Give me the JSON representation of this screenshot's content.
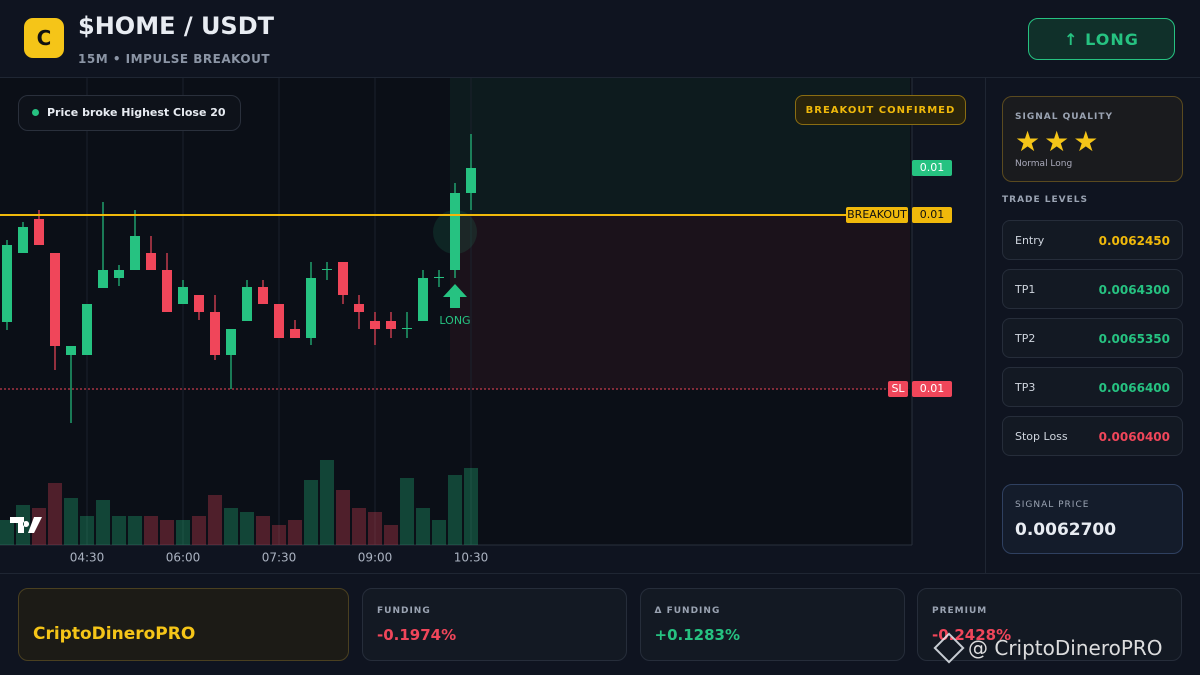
{
  "header": {
    "logo": "C",
    "title": "$HOME / USDT",
    "subtitle": "15M • IMPULSE BREAKOUT",
    "button": "↑ LONG"
  },
  "chart_data": {
    "type": "candlestick",
    "badge": "Price broke Highest Close 20",
    "status": "BREAKOUT CONFIRMED",
    "signal_label": "LONG",
    "open": [
      0.006107,
      0.006176,
      0.00621,
      0.006176,
      0.006074,
      0.006074,
      0.006141,
      0.006151,
      0.006159,
      0.006176,
      0.006159,
      0.006125,
      0.006134,
      0.006117,
      0.006074,
      0.006108,
      0.006142,
      0.006125,
      0.0061,
      0.006091,
      0.006159,
      0.006167,
      0.006125,
      0.006108,
      0.006108,
      0.0061,
      0.006108,
      0.006151,
      0.006159,
      0.006236
    ],
    "high": [
      0.006189,
      0.006207,
      0.006219,
      0.006176,
      0.006083,
      0.006125,
      0.006227,
      0.006164,
      0.006219,
      0.006193,
      0.006176,
      0.006149,
      0.006134,
      0.006134,
      0.0061,
      0.006149,
      0.006149,
      0.006125,
      0.006109,
      0.006167,
      0.006167,
      0.006167,
      0.006134,
      0.006117,
      0.006117,
      0.006117,
      0.006159,
      0.006159,
      0.006246,
      0.006295
    ],
    "low": [
      0.006099,
      0.006176,
      0.006184,
      0.006059,
      0.006006,
      0.006074,
      0.006141,
      0.006143,
      0.006159,
      0.006159,
      0.006117,
      0.006125,
      0.006109,
      0.006069,
      0.00604,
      0.006108,
      0.006125,
      0.006091,
      0.006091,
      0.006084,
      0.006149,
      0.006125,
      0.0061,
      0.006084,
      0.006091,
      0.006091,
      0.006108,
      0.006142,
      0.006151,
      0.006219
    ],
    "close": [
      0.006184,
      0.006202,
      0.006184,
      0.006083,
      0.006083,
      0.006125,
      0.006159,
      0.006159,
      0.006193,
      0.006159,
      0.006117,
      0.006142,
      0.006117,
      0.006074,
      0.0061,
      0.006142,
      0.006125,
      0.006091,
      0.006091,
      0.006151,
      0.00616,
      0.006134,
      0.006117,
      0.0061,
      0.0061,
      0.006101,
      0.006151,
      0.006152,
      0.006236,
      0.006261
    ],
    "volume": [
      25,
      40,
      37,
      62,
      47,
      29,
      45,
      29,
      29,
      29,
      25,
      25,
      29,
      50,
      37,
      33,
      29,
      20,
      25,
      65,
      85,
      55,
      37,
      33,
      20,
      67,
      37,
      25,
      70,
      77
    ],
    "ylim": [
      0.005969,
      0.006351
    ],
    "vlim": [
      0,
      100
    ],
    "xticks": [
      {
        "value": 5,
        "label": "04:30"
      },
      {
        "value": 11,
        "label": "06:00"
      },
      {
        "value": 17,
        "label": "07:30"
      },
      {
        "value": 23,
        "label": "09:00"
      },
      {
        "value": 29,
        "label": "10:30"
      }
    ],
    "levels": [
      {
        "name": "BREAKOUT",
        "value": 0.006214,
        "label": "0.01",
        "color": "#f0b90b"
      },
      {
        "name": "SL",
        "value": 0.00604,
        "label": "0.01",
        "color": "#f0465a"
      }
    ],
    "last_label": "0.01",
    "colors": {
      "up": "#26c281",
      "down": "#f0465a"
    }
  },
  "sidebar": {
    "quality_title": "SIGNAL QUALITY",
    "stars": 3,
    "quality_label": "Normal Long",
    "levels_title": "TRADE LEVELS",
    "levels": [
      {
        "name": "Entry",
        "value": "0.0062450",
        "color": "#f0b90b"
      },
      {
        "name": "TP1",
        "value": "0.0064300",
        "color": "#26c281"
      },
      {
        "name": "TP2",
        "value": "0.0065350",
        "color": "#26c281"
      },
      {
        "name": "TP3",
        "value": "0.0066400",
        "color": "#26c281"
      },
      {
        "name": "Stop Loss",
        "value": "0.0060400",
        "color": "#f0465a"
      }
    ],
    "signal_price_title": "SIGNAL PRICE",
    "signal_price": "0.0062700"
  },
  "footer": {
    "brand": "CriptoDineroPRO",
    "cards": [
      {
        "label": "FUNDING",
        "value": "-0.1974%",
        "color": "#f0465a"
      },
      {
        "label": "Δ FUNDING",
        "value": "+0.1283%",
        "color": "#26c281"
      },
      {
        "label": "PREMIUM",
        "value": "-0.2428%",
        "color": "#f0465a"
      }
    ],
    "watermark": "@ CriptoDineroPRO"
  }
}
